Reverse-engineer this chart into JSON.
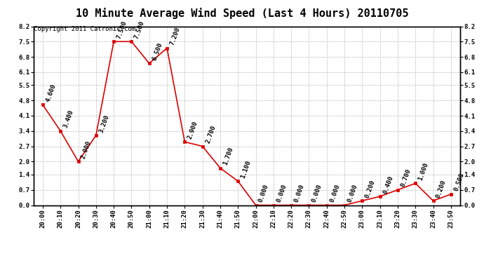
{
  "title": "10 Minute Average Wind Speed (Last 4 Hours) 20110705",
  "copyright": "Copyright 2011 Catronic.com",
  "times": [
    "20:00",
    "20:10",
    "20:20",
    "20:30",
    "20:40",
    "20:50",
    "21:00",
    "21:10",
    "21:20",
    "21:30",
    "21:40",
    "21:50",
    "22:00",
    "22:10",
    "22:20",
    "22:30",
    "22:40",
    "22:50",
    "23:00",
    "23:10",
    "23:20",
    "23:30",
    "23:40",
    "23:50"
  ],
  "values": [
    4.6,
    3.4,
    2.0,
    3.2,
    7.5,
    7.5,
    6.5,
    7.2,
    2.9,
    2.7,
    1.7,
    1.1,
    0.0,
    0.0,
    0.0,
    0.0,
    0.0,
    0.0,
    0.2,
    0.4,
    0.7,
    1.0,
    0.2,
    0.5
  ],
  "ylim": [
    0.0,
    8.2
  ],
  "yticks": [
    0.0,
    0.7,
    1.4,
    2.0,
    2.7,
    3.4,
    4.1,
    4.8,
    5.5,
    6.1,
    6.8,
    7.5,
    8.2
  ],
  "line_color": "#dd0000",
  "marker_color": "#dd0000",
  "bg_color": "#ffffff",
  "grid_color": "#bbbbbb",
  "title_fontsize": 11,
  "copyright_fontsize": 6.5,
  "label_fontsize": 6.5
}
